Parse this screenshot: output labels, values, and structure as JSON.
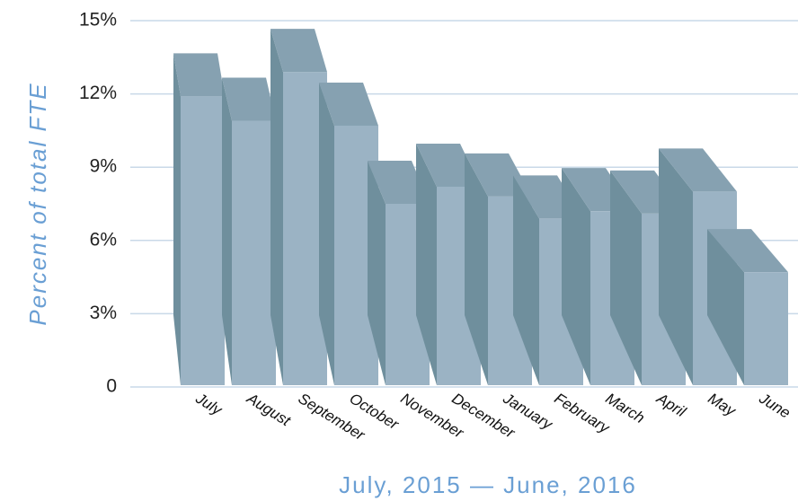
{
  "chart_data": {
    "type": "bar3d",
    "y_label": "Percent of total FTE",
    "x_label": "July, 2015 — June, 2016",
    "categories": [
      "July",
      "August",
      "September",
      "October",
      "November",
      "December",
      "January",
      "February",
      "March",
      "April",
      "May",
      "June"
    ],
    "values": [
      11.9,
      10.9,
      12.9,
      10.7,
      7.5,
      8.2,
      7.8,
      6.9,
      7.2,
      7.1,
      8.0,
      4.7
    ],
    "color": "#9bb3c4",
    "ylim": [
      0,
      15
    ],
    "yticks": [
      0,
      {
        "value": 3,
        "label": "3%"
      },
      {
        "value": 6,
        "label": "6%"
      },
      {
        "value": 9,
        "label": "9%"
      },
      {
        "value": 12,
        "label": "12%"
      },
      {
        "value": 15,
        "label": "15%"
      }
    ],
    "grid": true
  }
}
